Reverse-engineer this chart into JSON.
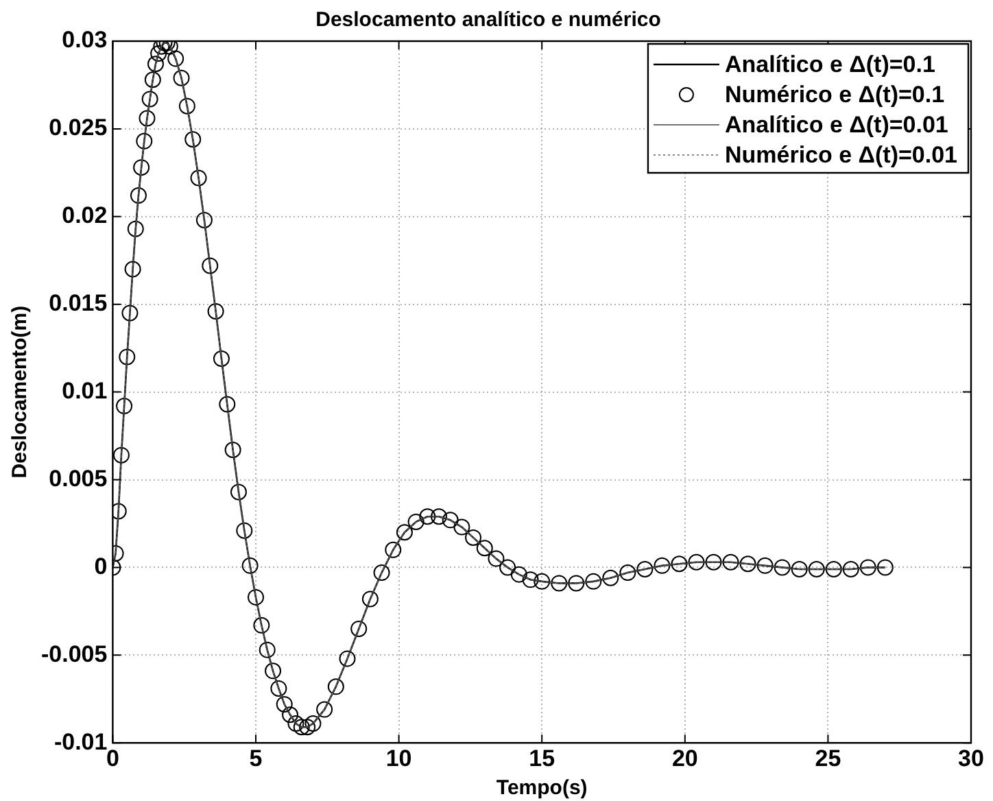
{
  "chart_data": {
    "type": "line",
    "title": "Deslocamento analítico e numérico",
    "xlabel": "Tempo(s)",
    "ylabel": "Deslocamento(m)",
    "xlim": [
      0,
      30
    ],
    "xticks": [
      0,
      5,
      10,
      15,
      20,
      25,
      30
    ],
    "ylim": [
      -0.01,
      0.03
    ],
    "yticks": [
      -0.01,
      -0.005,
      0,
      0.005,
      0.01,
      0.015,
      0.02,
      0.025,
      0.03
    ],
    "grid": true,
    "legend": "top right",
    "x": [
      0,
      0.1,
      0.2,
      0.3,
      0.4,
      0.5,
      0.6,
      0.7,
      0.8,
      0.9,
      1.0,
      1.1,
      1.2,
      1.3,
      1.4,
      1.5,
      1.6,
      1.7,
      1.8,
      1.9,
      2.0,
      2.2,
      2.4,
      2.6,
      2.8,
      3.0,
      3.2,
      3.4,
      3.6,
      3.8,
      4.0,
      4.2,
      4.4,
      4.6,
      4.8,
      5.0,
      5.2,
      5.4,
      5.6,
      5.8,
      6.0,
      6.2,
      6.4,
      6.6,
      6.8,
      7.0,
      7.4,
      7.8,
      8.2,
      8.6,
      9.0,
      9.4,
      9.8,
      10.2,
      10.6,
      11.0,
      11.4,
      11.8,
      12.2,
      12.6,
      13.0,
      13.4,
      13.8,
      14.2,
      14.6,
      15.0,
      15.6,
      16.2,
      16.8,
      17.4,
      18.0,
      18.6,
      19.2,
      19.8,
      20.4,
      21.0,
      21.6,
      22.2,
      22.8,
      23.4,
      24.0,
      24.6,
      25.2,
      25.8,
      26.4,
      27.0
    ],
    "series": [
      {
        "name": "Analítico e Δ(t)=0.1",
        "type": "line",
        "color": "#000000",
        "line_style": "solid",
        "marker": "none",
        "values": [
          0,
          0.0008,
          0.0032,
          0.0064,
          0.0092,
          0.012,
          0.0145,
          0.017,
          0.0193,
          0.0212,
          0.0228,
          0.0243,
          0.0256,
          0.0267,
          0.0278,
          0.0287,
          0.0293,
          0.0297,
          0.0299,
          0.0299,
          0.0297,
          0.029,
          0.0279,
          0.0263,
          0.0244,
          0.0222,
          0.0198,
          0.0172,
          0.0146,
          0.0119,
          0.0093,
          0.0067,
          0.0043,
          0.0021,
          0.0001,
          -0.0017,
          -0.0033,
          -0.0047,
          -0.0059,
          -0.0069,
          -0.0078,
          -0.0084,
          -0.0089,
          -0.0091,
          -0.0091,
          -0.0089,
          -0.0081,
          -0.0068,
          -0.0052,
          -0.0035,
          -0.0018,
          -0.0003,
          0.001,
          0.002,
          0.0026,
          0.0029,
          0.0029,
          0.0027,
          0.0023,
          0.0017,
          0.0011,
          0.0005,
          0,
          -0.0004,
          -0.0007,
          -0.0008,
          -0.0009,
          -0.0009,
          -0.0008,
          -0.0006,
          -0.0003,
          -0.0001,
          0.0001,
          0.0002,
          0.0003,
          0.0003,
          0.0003,
          0.0002,
          0.0001,
          0,
          -0.0001,
          -0.0001,
          -0.0001,
          -0.0001,
          0,
          0
        ]
      },
      {
        "name": "Numérico e Δ(t)=0.1",
        "type": "scatter",
        "color": "#000000",
        "marker": "circle",
        "values": [
          0,
          0.0008,
          0.0032,
          0.0064,
          0.0092,
          0.012,
          0.0145,
          0.017,
          0.0193,
          0.0212,
          0.0228,
          0.0243,
          0.0256,
          0.0267,
          0.0278,
          0.0287,
          0.0293,
          0.0297,
          0.0299,
          0.0299,
          0.0297,
          0.029,
          0.0279,
          0.0263,
          0.0244,
          0.0222,
          0.0198,
          0.0172,
          0.0146,
          0.0119,
          0.0093,
          0.0067,
          0.0043,
          0.0021,
          0.0001,
          -0.0017,
          -0.0033,
          -0.0047,
          -0.0059,
          -0.0069,
          -0.0078,
          -0.0084,
          -0.0089,
          -0.0091,
          -0.0091,
          -0.0089,
          -0.0081,
          -0.0068,
          -0.0052,
          -0.0035,
          -0.0018,
          -0.0003,
          0.001,
          0.002,
          0.0026,
          0.0029,
          0.0029,
          0.0027,
          0.0023,
          0.0017,
          0.0011,
          0.0005,
          0,
          -0.0004,
          -0.0007,
          -0.0008,
          -0.0009,
          -0.0009,
          -0.0008,
          -0.0006,
          -0.0003,
          -0.0001,
          0.0001,
          0.0002,
          0.0003,
          0.0003,
          0.0003,
          0.0002,
          0.0001,
          0,
          -0.0001,
          -0.0001,
          -0.0001,
          -0.0001,
          0,
          0
        ]
      },
      {
        "name": "Analítico e Δ(t)=0.01",
        "type": "line",
        "color": "#404040",
        "line_style": "solid",
        "marker": "none",
        "values": [
          0,
          0.0008,
          0.0032,
          0.0064,
          0.0092,
          0.012,
          0.0145,
          0.017,
          0.0193,
          0.0212,
          0.0228,
          0.0243,
          0.0256,
          0.0267,
          0.0278,
          0.0287,
          0.0293,
          0.0297,
          0.0299,
          0.0299,
          0.0297,
          0.029,
          0.0279,
          0.0263,
          0.0244,
          0.0222,
          0.0198,
          0.0172,
          0.0146,
          0.0119,
          0.0093,
          0.0067,
          0.0043,
          0.0021,
          0.0001,
          -0.0017,
          -0.0033,
          -0.0047,
          -0.0059,
          -0.0069,
          -0.0078,
          -0.0084,
          -0.0089,
          -0.0091,
          -0.0091,
          -0.0089,
          -0.0081,
          -0.0068,
          -0.0052,
          -0.0035,
          -0.0018,
          -0.0003,
          0.001,
          0.002,
          0.0026,
          0.0029,
          0.0029,
          0.0027,
          0.0023,
          0.0017,
          0.0011,
          0.0005,
          0,
          -0.0004,
          -0.0007,
          -0.0008,
          -0.0009,
          -0.0009,
          -0.0008,
          -0.0006,
          -0.0003,
          -0.0001,
          0.0001,
          0.0002,
          0.0003,
          0.0003,
          0.0003,
          0.0002,
          0.0001,
          0,
          -0.0001,
          -0.0001,
          -0.0001,
          -0.0001,
          0,
          0
        ]
      },
      {
        "name": "Numérico e Δ(t)=0.01",
        "type": "line",
        "color": "#606060",
        "line_style": "dotted",
        "marker": "none",
        "values": [
          0,
          0.0008,
          0.0032,
          0.0064,
          0.0092,
          0.012,
          0.0145,
          0.017,
          0.0193,
          0.0212,
          0.0228,
          0.0243,
          0.0256,
          0.0267,
          0.0278,
          0.0287,
          0.0293,
          0.0297,
          0.0299,
          0.0299,
          0.0297,
          0.029,
          0.0279,
          0.0263,
          0.0244,
          0.0222,
          0.0198,
          0.0172,
          0.0146,
          0.0119,
          0.0093,
          0.0067,
          0.0043,
          0.0021,
          0.0001,
          -0.0017,
          -0.0033,
          -0.0047,
          -0.0059,
          -0.0069,
          -0.0078,
          -0.0084,
          -0.0089,
          -0.0091,
          -0.0091,
          -0.0089,
          -0.0081,
          -0.0068,
          -0.0052,
          -0.0035,
          -0.0018,
          -0.0003,
          0.001,
          0.002,
          0.0026,
          0.0029,
          0.0029,
          0.0027,
          0.0023,
          0.0017,
          0.0011,
          0.0005,
          0,
          -0.0004,
          -0.0007,
          -0.0008,
          -0.0009,
          -0.0009,
          -0.0008,
          -0.0006,
          -0.0003,
          -0.0001,
          0.0001,
          0.0002,
          0.0003,
          0.0003,
          0.0003,
          0.0002,
          0.0001,
          0,
          -0.0001,
          -0.0001,
          -0.0001,
          -0.0001,
          0,
          0
        ]
      }
    ]
  }
}
